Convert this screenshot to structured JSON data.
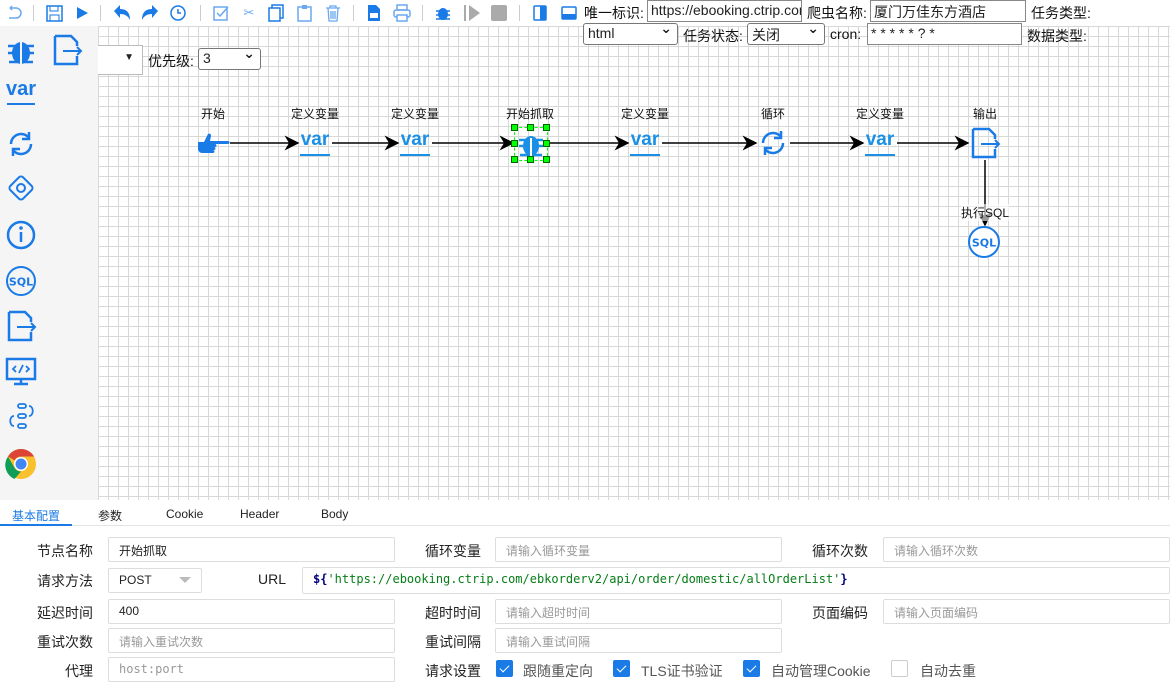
{
  "toolbar": {
    "items": [
      "undo",
      "save",
      "run",
      "undo-arrow",
      "redo-arrow",
      "history",
      "select-all",
      "cut",
      "copy",
      "paste",
      "delete",
      "export-image",
      "print",
      "debug",
      "step",
      "stop",
      "toggle-left-panel",
      "toggle-bottom-panel"
    ]
  },
  "header": {
    "unique_id_label": "唯一标识:",
    "unique_id_value": "https://ebooking.ctrip.com",
    "spider_name_label": "爬虫名称:",
    "spider_name_value": "厦门万佳东方酒店",
    "task_type_label": "任务类型:",
    "task_type_value": "html",
    "task_status_label": "任务状态:",
    "task_status_value": "关闭",
    "cron_label": "cron:",
    "cron_value": "* * * * * ? *",
    "data_type_label": "数据类型:",
    "priority_label": "优先级:",
    "priority_value": "3"
  },
  "sidebar": {
    "items": [
      "bug",
      "output",
      "var",
      "loop",
      "condition",
      "info",
      "sql",
      "output-file",
      "code",
      "process",
      "chrome"
    ]
  },
  "flow": {
    "nodes": [
      {
        "label": "开始",
        "icon": "pointing-hand"
      },
      {
        "label": "定义变量",
        "icon": "var"
      },
      {
        "label": "定义变量",
        "icon": "var"
      },
      {
        "label": "开始抓取",
        "icon": "bug"
      },
      {
        "label": "定义变量",
        "icon": "var"
      },
      {
        "label": "循环",
        "icon": "loop"
      },
      {
        "label": "定义变量",
        "icon": "var"
      },
      {
        "label": "输出",
        "icon": "output"
      },
      {
        "label": "执行SQL",
        "icon": "sql"
      }
    ],
    "var_text": "var",
    "sql_text": "SQL"
  },
  "panel": {
    "tabs": [
      "基本配置",
      "参数",
      "Cookie",
      "Header",
      "Body"
    ],
    "active_tab": "基本配置",
    "node_name_label": "节点名称",
    "node_name_value": "开始抓取",
    "loop_var_label": "循环变量",
    "loop_var_placeholder": "请输入循环变量",
    "loop_count_label": "循环次数",
    "loop_count_placeholder": "请输入循环次数",
    "method_label": "请求方法",
    "method_value": "POST",
    "url_label": "URL",
    "url_prefix": "${",
    "url_string": "'https://ebooking.ctrip.com/ebkorderv2/api/order/domestic/allOrderList'",
    "url_suffix": "}",
    "delay_label": "延迟时间",
    "delay_value": "400",
    "timeout_label": "超时时间",
    "timeout_placeholder": "请输入超时时间",
    "encoding_label": "页面编码",
    "encoding_placeholder": "请输入页面编码",
    "retry_label": "重试次数",
    "retry_placeholder": "请输入重试次数",
    "retry_interval_label": "重试间隔",
    "retry_interval_placeholder": "请输入重试间隔",
    "proxy_label": "代理",
    "proxy_placeholder": "host:port",
    "request_settings_label": "请求设置",
    "options": [
      {
        "label": "跟随重定向",
        "checked": true
      },
      {
        "label": "TLS证书验证",
        "checked": true
      },
      {
        "label": "自动管理Cookie",
        "checked": true
      },
      {
        "label": "自动去重",
        "checked": false
      }
    ]
  },
  "colors": {
    "accent": "#1a7be6",
    "selection": "#00ff00",
    "url_string": "#067d17",
    "url_brace": "#000080"
  }
}
